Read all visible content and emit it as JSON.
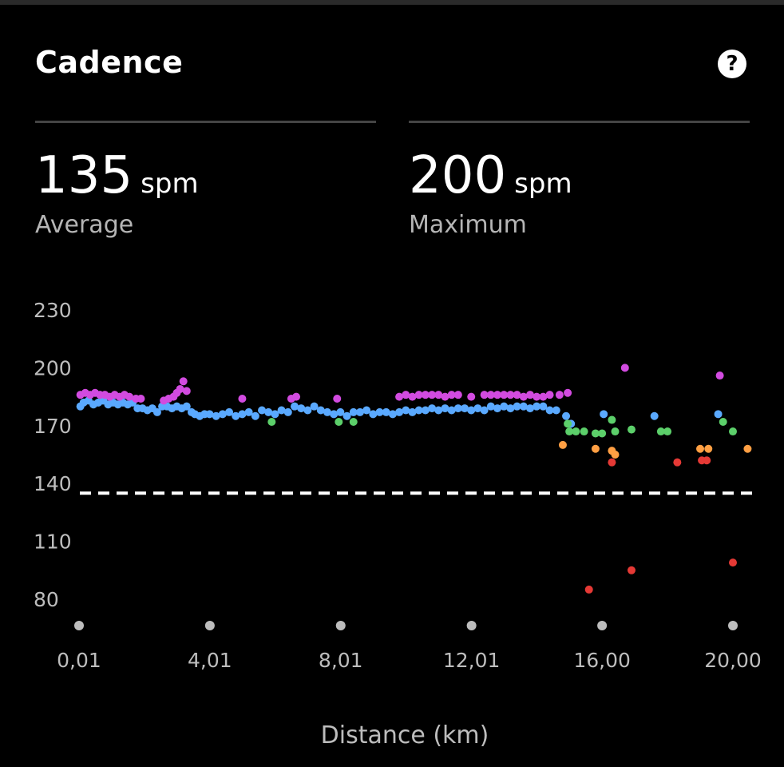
{
  "card": {
    "title": "Cadence",
    "help_icon": "question-circle-icon"
  },
  "stats": {
    "average": {
      "value": "135",
      "unit": "spm",
      "label": "Average"
    },
    "maximum": {
      "value": "200",
      "unit": "spm",
      "label": "Maximum"
    }
  },
  "chart_data": {
    "type": "scatter",
    "title": "",
    "xlabel": "Distance (km)",
    "ylabel": "",
    "xlim": [
      0.01,
      20.5
    ],
    "ylim": [
      72,
      240
    ],
    "y_ticks": [
      "230",
      "200",
      "170",
      "140",
      "110",
      "80"
    ],
    "y_tick_values": [
      230,
      200,
      170,
      140,
      110,
      80
    ],
    "x_ticks": [
      "0,01",
      "4,01",
      "8,01",
      "12,01",
      "16,00",
      "20,00"
    ],
    "x_tick_values": [
      0.01,
      4.01,
      8.01,
      12.01,
      16.0,
      20.0
    ],
    "reference_line": {
      "value": 135,
      "style": "dashed",
      "color": "#ffffff"
    },
    "colors": {
      "blue": "#5aa9ff",
      "purple": "#d24be0",
      "green": "#5ccf6a",
      "orange": "#ff9f43",
      "red": "#e53935"
    },
    "series": [
      {
        "color": "blue",
        "points": [
          [
            0.05,
            180
          ],
          [
            0.15,
            182
          ],
          [
            0.3,
            183
          ],
          [
            0.45,
            181
          ],
          [
            0.6,
            182
          ],
          [
            0.75,
            183
          ],
          [
            0.9,
            181
          ],
          [
            1.05,
            182
          ],
          [
            1.2,
            181
          ],
          [
            1.35,
            182
          ],
          [
            1.5,
            181
          ],
          [
            1.65,
            182
          ],
          [
            1.8,
            179
          ],
          [
            1.95,
            179
          ],
          [
            2.1,
            178
          ],
          [
            2.25,
            179
          ],
          [
            2.4,
            177
          ],
          [
            2.55,
            180
          ],
          [
            2.7,
            180
          ],
          [
            2.85,
            179
          ],
          [
            3.0,
            180
          ],
          [
            3.15,
            179
          ],
          [
            3.3,
            180
          ],
          [
            3.45,
            177
          ],
          [
            3.55,
            176
          ],
          [
            3.7,
            175
          ],
          [
            3.85,
            176
          ],
          [
            4.0,
            176
          ],
          [
            4.2,
            175
          ],
          [
            4.4,
            176
          ],
          [
            4.6,
            177
          ],
          [
            4.8,
            175
          ],
          [
            5.0,
            176
          ],
          [
            5.2,
            177
          ],
          [
            5.4,
            175
          ],
          [
            5.6,
            178
          ],
          [
            5.8,
            177
          ],
          [
            6.0,
            176
          ],
          [
            6.2,
            178
          ],
          [
            6.4,
            177
          ],
          [
            6.6,
            180
          ],
          [
            6.8,
            179
          ],
          [
            7.0,
            178
          ],
          [
            7.2,
            180
          ],
          [
            7.4,
            178
          ],
          [
            7.6,
            177
          ],
          [
            7.8,
            176
          ],
          [
            8.0,
            177
          ],
          [
            8.2,
            175
          ],
          [
            8.4,
            177
          ],
          [
            8.6,
            177
          ],
          [
            8.8,
            178
          ],
          [
            9.0,
            176
          ],
          [
            9.2,
            177
          ],
          [
            9.4,
            177
          ],
          [
            9.6,
            176
          ],
          [
            9.8,
            177
          ],
          [
            10.0,
            178
          ],
          [
            10.2,
            177
          ],
          [
            10.4,
            178
          ],
          [
            10.6,
            178
          ],
          [
            10.8,
            179
          ],
          [
            11.0,
            178
          ],
          [
            11.2,
            179
          ],
          [
            11.4,
            178
          ],
          [
            11.6,
            179
          ],
          [
            11.8,
            179
          ],
          [
            12.0,
            178
          ],
          [
            12.2,
            179
          ],
          [
            12.4,
            178
          ],
          [
            12.6,
            180
          ],
          [
            12.8,
            179
          ],
          [
            13.0,
            180
          ],
          [
            13.2,
            179
          ],
          [
            13.4,
            180
          ],
          [
            13.6,
            180
          ],
          [
            13.8,
            179
          ],
          [
            14.0,
            180
          ],
          [
            14.2,
            180
          ],
          [
            14.4,
            178
          ],
          [
            14.6,
            178
          ],
          [
            14.9,
            175
          ],
          [
            15.05,
            171
          ],
          [
            16.05,
            176
          ],
          [
            17.6,
            175
          ],
          [
            19.55,
            176
          ]
        ]
      },
      {
        "color": "purple",
        "points": [
          [
            0.05,
            186
          ],
          [
            0.2,
            187
          ],
          [
            0.35,
            186
          ],
          [
            0.5,
            187
          ],
          [
            0.65,
            186
          ],
          [
            0.8,
            186
          ],
          [
            0.95,
            185
          ],
          [
            1.1,
            186
          ],
          [
            1.25,
            185
          ],
          [
            1.4,
            186
          ],
          [
            1.55,
            185
          ],
          [
            1.75,
            184
          ],
          [
            1.9,
            184
          ],
          [
            2.6,
            183
          ],
          [
            2.75,
            184
          ],
          [
            2.9,
            185
          ],
          [
            3.0,
            187
          ],
          [
            3.1,
            189
          ],
          [
            3.2,
            193
          ],
          [
            3.3,
            188
          ],
          [
            5.0,
            184
          ],
          [
            6.5,
            184
          ],
          [
            6.65,
            185
          ],
          [
            7.9,
            184
          ],
          [
            9.8,
            185
          ],
          [
            10.0,
            186
          ],
          [
            10.2,
            185
          ],
          [
            10.4,
            186
          ],
          [
            10.6,
            186
          ],
          [
            10.8,
            186
          ],
          [
            11.0,
            186
          ],
          [
            11.2,
            185
          ],
          [
            11.4,
            186
          ],
          [
            11.6,
            186
          ],
          [
            12.0,
            185
          ],
          [
            12.4,
            186
          ],
          [
            12.6,
            186
          ],
          [
            12.8,
            186
          ],
          [
            13.0,
            186
          ],
          [
            13.2,
            186
          ],
          [
            13.4,
            186
          ],
          [
            13.6,
            185
          ],
          [
            13.8,
            186
          ],
          [
            14.0,
            185
          ],
          [
            14.2,
            185
          ],
          [
            14.4,
            186
          ],
          [
            14.7,
            186
          ],
          [
            14.95,
            187
          ],
          [
            16.7,
            200
          ],
          [
            19.6,
            196
          ]
        ]
      },
      {
        "color": "green",
        "points": [
          [
            5.9,
            172
          ],
          [
            7.95,
            172
          ],
          [
            8.4,
            172
          ],
          [
            14.95,
            171
          ],
          [
            15.0,
            167
          ],
          [
            15.2,
            167
          ],
          [
            15.45,
            167
          ],
          [
            15.8,
            166
          ],
          [
            16.0,
            166
          ],
          [
            16.3,
            173
          ],
          [
            16.4,
            167
          ],
          [
            16.9,
            168
          ],
          [
            17.8,
            167
          ],
          [
            18.0,
            167
          ],
          [
            19.7,
            172
          ],
          [
            20.0,
            167
          ]
        ]
      },
      {
        "color": "orange",
        "points": [
          [
            14.8,
            160
          ],
          [
            15.8,
            158
          ],
          [
            16.3,
            157
          ],
          [
            16.4,
            155
          ],
          [
            19.0,
            158
          ],
          [
            19.25,
            158
          ],
          [
            20.45,
            158
          ]
        ]
      },
      {
        "color": "red",
        "points": [
          [
            16.3,
            151
          ],
          [
            18.3,
            151
          ],
          [
            19.05,
            152
          ],
          [
            19.2,
            152
          ],
          [
            15.6,
            85
          ],
          [
            16.9,
            95
          ],
          [
            20.0,
            99
          ]
        ]
      }
    ]
  }
}
